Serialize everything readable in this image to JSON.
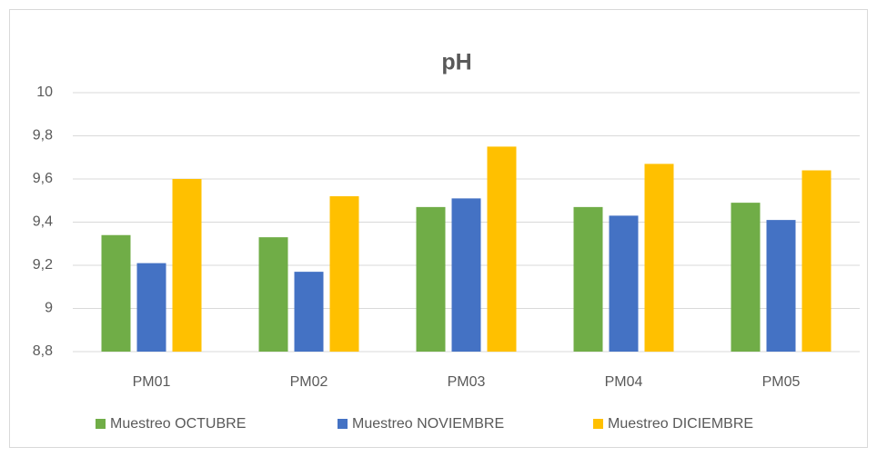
{
  "chart_data": {
    "type": "bar",
    "title": "pH",
    "categories": [
      "PM01",
      "PM02",
      "PM03",
      "PM04",
      "PM05"
    ],
    "series": [
      {
        "name": "Muestreo OCTUBRE",
        "color": "#70ad47",
        "values": [
          9.34,
          9.33,
          9.47,
          9.47,
          9.49
        ]
      },
      {
        "name": "Muestreo NOVIEMBRE",
        "color": "#4472c4",
        "values": [
          9.21,
          9.17,
          9.51,
          9.43,
          9.41
        ]
      },
      {
        "name": "Muestreo DICIEMBRE",
        "color": "#ffc000",
        "values": [
          9.6,
          9.52,
          9.75,
          9.67,
          9.64
        ]
      }
    ],
    "ylim": [
      8.8,
      10
    ],
    "yticks": [
      {
        "value": 8.8,
        "label": "8,8"
      },
      9,
      {
        "value": 9.2,
        "label": "9,2"
      },
      {
        "value": 9.4,
        "label": "9,4"
      },
      {
        "value": 9.6,
        "label": "9,6"
      },
      {
        "value": 9.8,
        "label": "9,8"
      },
      10
    ],
    "grid": true,
    "legend": "bottom"
  }
}
